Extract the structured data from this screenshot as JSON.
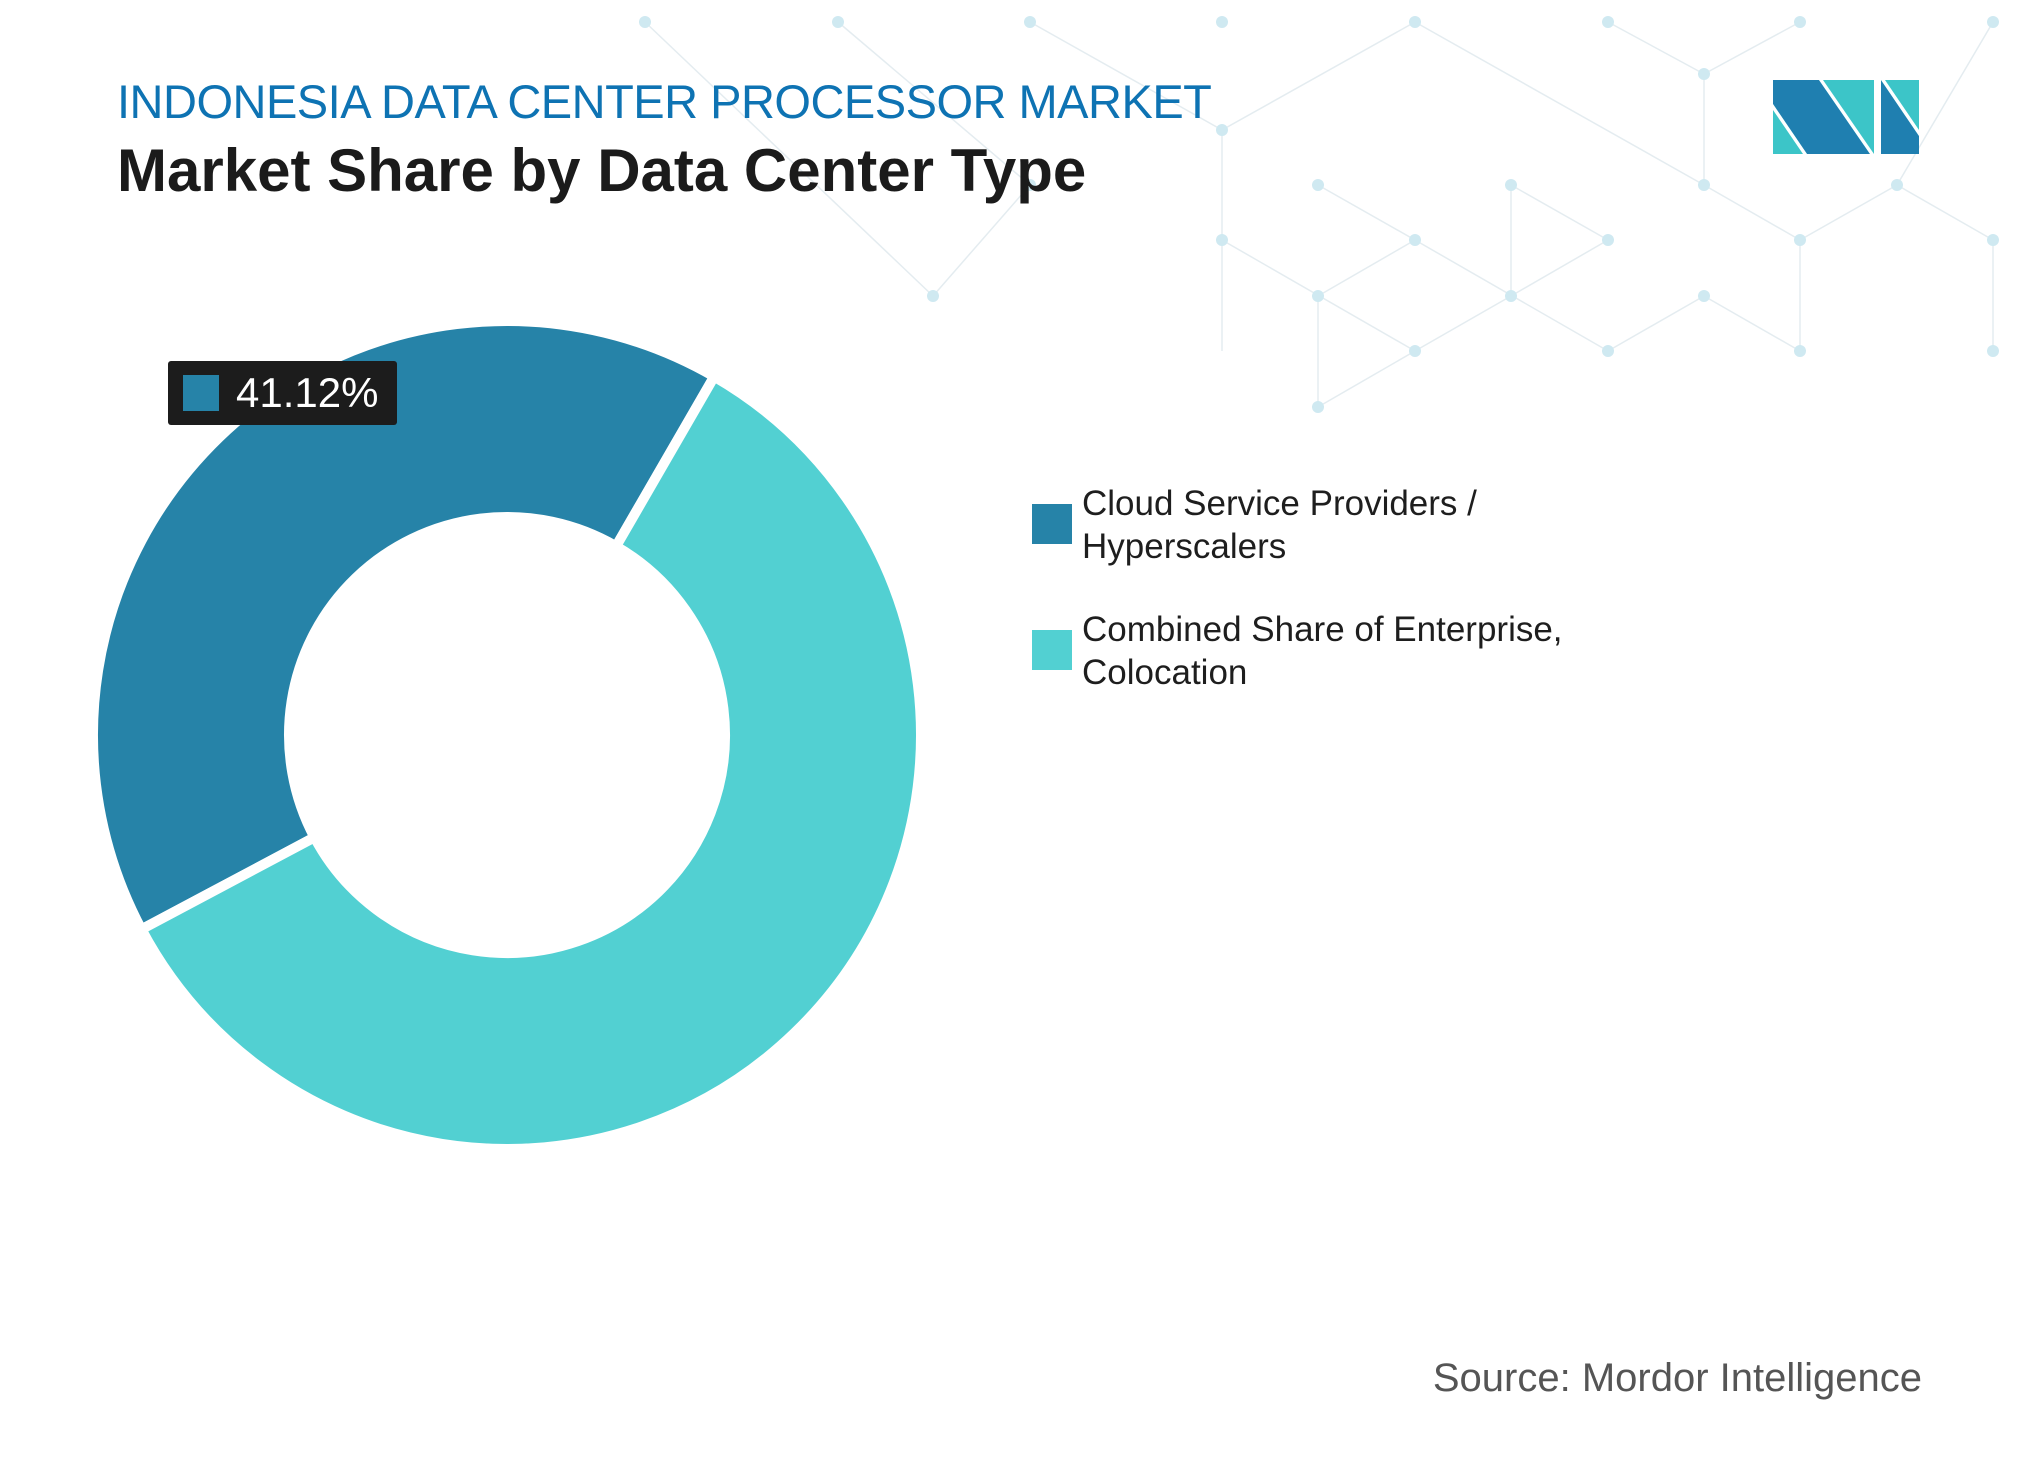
{
  "header": {
    "title": "INDONESIA DATA CENTER PROCESSOR MARKET",
    "subtitle": "Market Share by Data Center Type"
  },
  "source": "Source: Mordor Intelligence",
  "colors": {
    "title": "#0e73b3",
    "dark_series": "#2683a8",
    "light_series": "#52d0d2"
  },
  "chart_data": {
    "type": "pie",
    "style": "donut",
    "series": [
      {
        "name": "Cloud Service Providers / Hyperscalers",
        "value": 41.12,
        "color": "#2683a8",
        "label": "41.12%"
      },
      {
        "name": "Combined Share of Enterprise, Colocation",
        "value": 58.88,
        "color": "#52d0d2"
      }
    ],
    "legend_position": "right"
  }
}
